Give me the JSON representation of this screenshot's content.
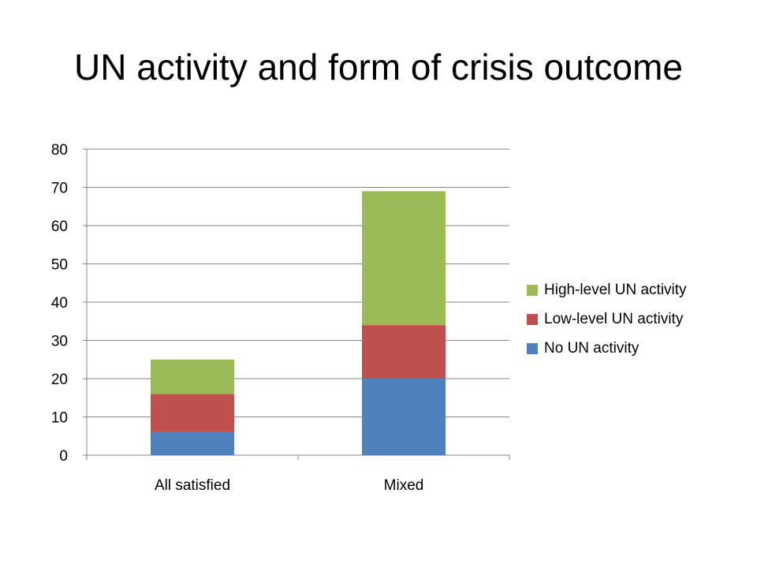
{
  "slide": {
    "title": "UN activity and form of crisis outcome"
  },
  "chart_data": {
    "type": "bar",
    "stacked": true,
    "title": "",
    "xlabel": "",
    "ylabel": "",
    "categories": [
      "All satisfied",
      "Mixed"
    ],
    "ylim": [
      0,
      80
    ],
    "yticks": [
      0,
      10,
      20,
      30,
      40,
      50,
      60,
      70,
      80
    ],
    "grid": true,
    "legend_position": "right",
    "series": [
      {
        "name": "No UN activity",
        "color": "#4F81BD",
        "values": [
          6,
          20
        ]
      },
      {
        "name": "Low-level UN activity",
        "color": "#C0504D",
        "values": [
          10,
          14
        ]
      },
      {
        "name": "High-level UN activity",
        "color": "#9BBB59",
        "values": [
          9,
          35
        ]
      }
    ]
  }
}
